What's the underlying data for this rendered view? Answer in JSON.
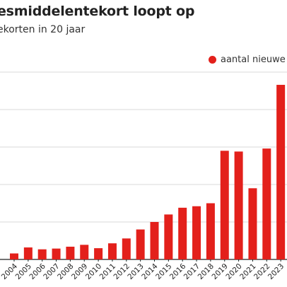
{
  "title": "esmiddelentekort loopt op",
  "subtitle": "ekorten in 20 jaar",
  "colors": {
    "bar": "#e3201b",
    "grid": "#d9d9d9",
    "axis": "#222222"
  },
  "chart_data": {
    "type": "bar",
    "title": "esmiddelentekort loopt op",
    "subtitle": "ekorten in 20 jaar",
    "categories": [
      "2004",
      "2005",
      "2006",
      "2007",
      "2008",
      "2009",
      "2010",
      "2011",
      "2012",
      "2013",
      "2014",
      "2015",
      "2016",
      "2017",
      "2018",
      "2019",
      "2020",
      "2021",
      "2022",
      "2023"
    ],
    "series": [
      {
        "name": "aantal nieuwe",
        "values": [
          160,
          320,
          270,
          290,
          340,
          390,
          300,
          430,
          560,
          800,
          1000,
          1200,
          1380,
          1420,
          1500,
          2900,
          2880,
          1900,
          2960,
          4660
        ]
      }
    ],
    "ylim": [
      0,
      5000
    ],
    "grid": true,
    "legend": "top-right",
    "xlabel": "",
    "ylabel": ""
  }
}
